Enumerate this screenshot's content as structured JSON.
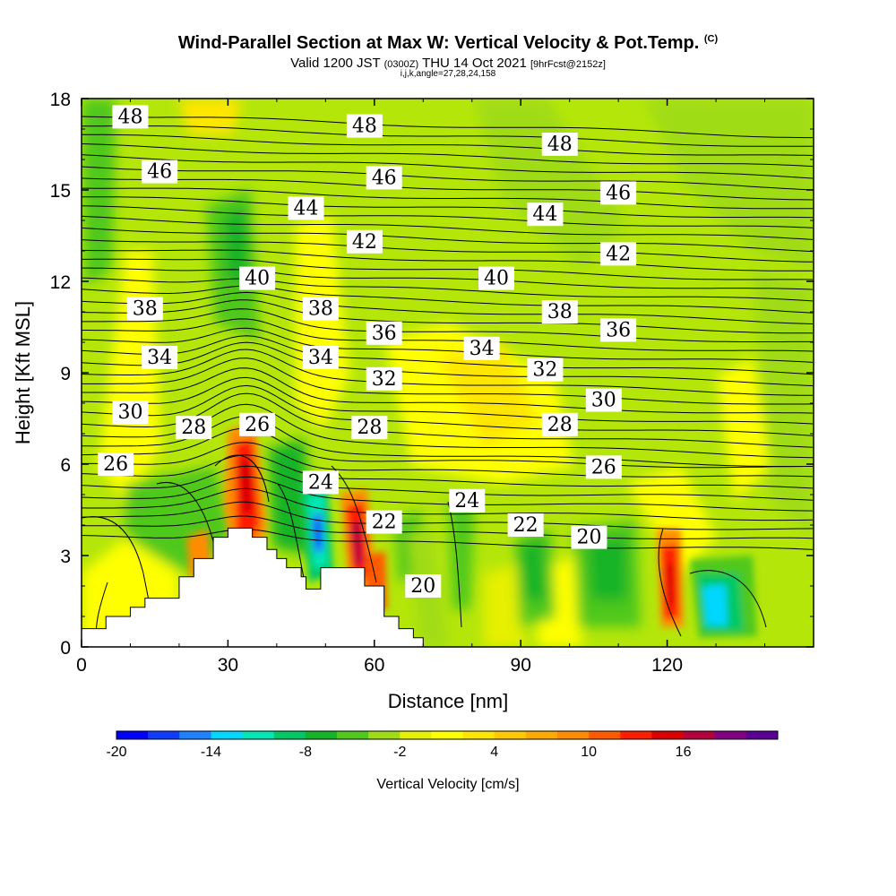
{
  "header": {
    "title": "Wind-Parallel Section at Max W: Vertical Velocity & Pot.Temp.",
    "title_suffix": "(C)",
    "valid_prefix": "Valid 1200 JST",
    "valid_zulu": "(0300Z)",
    "valid_date": "THU 14 Oct 2021",
    "forecast": "[9hrFcst@2152z]",
    "indices": "i,j,k,angle=27,28,24,158"
  },
  "chart_data": {
    "type": "heatmap",
    "title": "Wind-Parallel Section at Max W: Vertical Velocity & Pot.Temp.",
    "xlabel": "Distance [nm]",
    "ylabel": "Height [Kft MSL]",
    "xlim": [
      0,
      150
    ],
    "ylim": [
      0,
      18
    ],
    "x_ticks": [
      "0",
      "30",
      "60",
      "90",
      "120"
    ],
    "y_ticks": [
      "0",
      "3",
      "6",
      "9",
      "12",
      "15",
      "18"
    ],
    "colorbar": {
      "label": "Vertical Velocity [cm/s]",
      "tick_labels": [
        "-20",
        "-14",
        "-8",
        "-2",
        "4",
        "10",
        "16"
      ],
      "colors": [
        "#0000ff",
        "#0f3cff",
        "#1e82ff",
        "#00d7ff",
        "#00e6b4",
        "#00c864",
        "#14b428",
        "#50c81e",
        "#a0dc14",
        "#e6f000",
        "#ffff00",
        "#ffe600",
        "#ffc800",
        "#ffaa00",
        "#ff8c00",
        "#ff5a00",
        "#ff1e00",
        "#dc0000",
        "#b4003c",
        "#820082",
        "#5a0096"
      ]
    },
    "terrain": [
      [
        0,
        0.6
      ],
      [
        5,
        0.6
      ],
      [
        5,
        1.0
      ],
      [
        10,
        1.0
      ],
      [
        10,
        1.3
      ],
      [
        13,
        1.3
      ],
      [
        13,
        1.6
      ],
      [
        20,
        1.6
      ],
      [
        20,
        2.3
      ],
      [
        23,
        2.3
      ],
      [
        23,
        2.9
      ],
      [
        27,
        2.9
      ],
      [
        27,
        3.6
      ],
      [
        30,
        3.6
      ],
      [
        30,
        3.9
      ],
      [
        35,
        3.9
      ],
      [
        35,
        3.6
      ],
      [
        38,
        3.6
      ],
      [
        38,
        3.2
      ],
      [
        40,
        3.2
      ],
      [
        40,
        2.9
      ],
      [
        42,
        2.9
      ],
      [
        42,
        2.6
      ],
      [
        45,
        2.6
      ],
      [
        45,
        2.3
      ],
      [
        46,
        2.3
      ],
      [
        46,
        1.9
      ],
      [
        49,
        1.9
      ],
      [
        49,
        2.6
      ],
      [
        58,
        2.6
      ],
      [
        58,
        2.0
      ],
      [
        62,
        2.0
      ],
      [
        62,
        1.0
      ],
      [
        65,
        1.0
      ],
      [
        65,
        0.6
      ],
      [
        68,
        0.6
      ],
      [
        68,
        0.3
      ],
      [
        70,
        0.3
      ],
      [
        70,
        0
      ]
    ],
    "theta_labels": [
      {
        "text": "48",
        "x": 10,
        "y": 17.4
      },
      {
        "text": "48",
        "x": 58,
        "y": 17.1
      },
      {
        "text": "48",
        "x": 98,
        "y": 16.5
      },
      {
        "text": "46",
        "x": 16,
        "y": 15.6
      },
      {
        "text": "46",
        "x": 62,
        "y": 15.4
      },
      {
        "text": "46",
        "x": 110,
        "y": 14.9
      },
      {
        "text": "44",
        "x": 46,
        "y": 14.4
      },
      {
        "text": "44",
        "x": 95,
        "y": 14.2
      },
      {
        "text": "42",
        "x": 58,
        "y": 13.3
      },
      {
        "text": "42",
        "x": 110,
        "y": 12.9
      },
      {
        "text": "40",
        "x": 36,
        "y": 12.1
      },
      {
        "text": "40",
        "x": 85,
        "y": 12.1
      },
      {
        "text": "38",
        "x": 13,
        "y": 11.1
      },
      {
        "text": "38",
        "x": 49,
        "y": 11.1
      },
      {
        "text": "38",
        "x": 98,
        "y": 11.0
      },
      {
        "text": "36",
        "x": 62,
        "y": 10.3
      },
      {
        "text": "36",
        "x": 110,
        "y": 10.4
      },
      {
        "text": "34",
        "x": 16,
        "y": 9.5
      },
      {
        "text": "34",
        "x": 49,
        "y": 9.5
      },
      {
        "text": "34",
        "x": 82,
        "y": 9.8
      },
      {
        "text": "32",
        "x": 62,
        "y": 8.8
      },
      {
        "text": "32",
        "x": 95,
        "y": 9.1
      },
      {
        "text": "30",
        "x": 10,
        "y": 7.7
      },
      {
        "text": "30",
        "x": 107,
        "y": 8.1
      },
      {
        "text": "28",
        "x": 23,
        "y": 7.2
      },
      {
        "text": "28",
        "x": 59,
        "y": 7.2
      },
      {
        "text": "28",
        "x": 98,
        "y": 7.3
      },
      {
        "text": "26",
        "x": 7,
        "y": 6.0
      },
      {
        "text": "26",
        "x": 36,
        "y": 7.3
      },
      {
        "text": "26",
        "x": 107,
        "y": 5.9
      },
      {
        "text": "24",
        "x": 49,
        "y": 5.4
      },
      {
        "text": "24",
        "x": 79,
        "y": 4.8
      },
      {
        "text": "22",
        "x": 62,
        "y": 4.1
      },
      {
        "text": "22",
        "x": 91,
        "y": 4.0
      },
      {
        "text": "20",
        "x": 104,
        "y": 3.6
      },
      {
        "text": "20",
        "x": 70,
        "y": 2.0
      }
    ]
  }
}
